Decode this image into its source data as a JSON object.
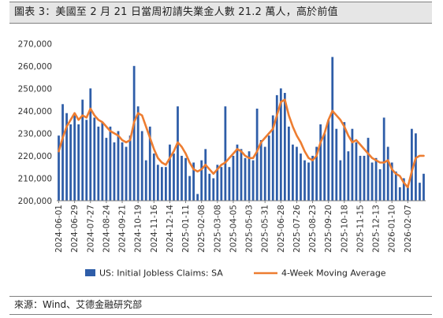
{
  "header": {
    "title": "圖表 3：美國至 2 月 21 日當周初請失業金人數 21.2 萬人，高於前值"
  },
  "footer": {
    "source": "來源：Wind、艾德金融研究部"
  },
  "chart_data": {
    "type": "bar",
    "title": "",
    "xlabel": "",
    "ylabel": "",
    "ylim": [
      200000,
      275000
    ],
    "yticks": [
      200000,
      210000,
      220000,
      230000,
      240000,
      250000,
      260000,
      270000
    ],
    "ytick_labels": [
      "200,000",
      "210,000",
      "220,000",
      "230,000",
      "240,000",
      "250,000",
      "260,000",
      "270,000"
    ],
    "x_tick_labels": [
      "2024-06-01",
      "2024-06-29",
      "2024-07-27",
      "2024-08-24",
      "2024-09-21",
      "2024-10-19",
      "2024-11-16",
      "2024-12-14",
      "2025-01-11",
      "2025-02-08",
      "2025-03-08",
      "2025-04-05",
      "2025-05-03",
      "2025-05-31",
      "2025-06-28",
      "2025-07-26",
      "2025-08-23",
      "2025-09-20",
      "2025-10-18",
      "2025-11-15",
      "2025-12-13",
      "2026-01-10",
      "2026-02-07"
    ],
    "legend_position": "bottom",
    "colors": {
      "bars": "#2e5da8",
      "line": "#ed7d31"
    },
    "series": [
      {
        "name": "US: Initial Jobless Claims: SA",
        "type": "bar",
        "values": [
          229000,
          243000,
          239000,
          234000,
          238000,
          234000,
          245000,
          236000,
          250000,
          237000,
          233000,
          235000,
          228000,
          233000,
          226000,
          231000,
          226000,
          224000,
          229000,
          260000,
          242000,
          231000,
          218000,
          233000,
          221000,
          216000,
          215000,
          215000,
          225000,
          221000,
          242000,
          220000,
          219000,
          211000,
          217000,
          203000,
          218000,
          223000,
          212000,
          210000,
          216000,
          215000,
          242000,
          215000,
          220000,
          225000,
          223000,
          219000,
          222000,
          218000,
          241000,
          227000,
          224000,
          229000,
          238000,
          247000,
          250000,
          248000,
          233000,
          225000,
          224000,
          221000,
          218000,
          217000,
          220000,
          224000,
          234000,
          230000,
          236000,
          264000,
          232000,
          218000,
          235000,
          222000,
          232000,
          226000,
          220000,
          220000,
          228000,
          217000,
          219000,
          214000,
          237000,
          224000,
          217000,
          213000,
          206000,
          210000,
          206000,
          232000,
          230000,
          208000,
          212000
        ]
      },
      {
        "name": "4-Week Moving Average",
        "type": "line",
        "values": [
          222000,
          228000,
          233000,
          236000,
          239000,
          236000,
          238000,
          237000,
          241000,
          238000,
          236000,
          235000,
          233000,
          231000,
          230000,
          229000,
          227000,
          226000,
          227000,
          235000,
          239000,
          238000,
          233000,
          228000,
          223000,
          219000,
          217000,
          216000,
          219000,
          222000,
          226000,
          224000,
          221000,
          217000,
          214000,
          213000,
          214000,
          216000,
          214000,
          212000,
          214000,
          216000,
          217000,
          219000,
          221000,
          223000,
          222000,
          220000,
          219000,
          219000,
          222000,
          226000,
          228000,
          230000,
          232000,
          238000,
          244000,
          245000,
          238000,
          233000,
          229000,
          226000,
          222000,
          219000,
          218000,
          220000,
          226000,
          230000,
          236000,
          240000,
          238000,
          236000,
          233000,
          229000,
          226000,
          227000,
          225000,
          223000,
          221000,
          219000,
          218000,
          217000,
          217000,
          218000,
          214000,
          212000,
          211000,
          208000,
          206000,
          213000,
          219000,
          220000,
          220000
        ]
      }
    ]
  }
}
